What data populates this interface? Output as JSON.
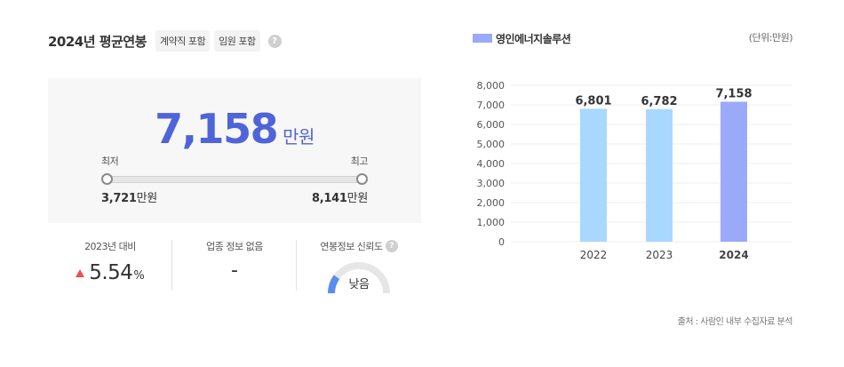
{
  "header": {
    "title": "2024년 평균연봉",
    "tags": [
      "계약직 포함",
      "임원 포함"
    ],
    "help": "?"
  },
  "salary": {
    "amount": "7,158",
    "unit": "만원",
    "min_label": "최저",
    "max_label": "최고",
    "min_value": "3,721",
    "max_value": "8,141",
    "value_unit": "만원"
  },
  "stats": {
    "yoy_label": "2023년 대비",
    "yoy_value": "5.54",
    "yoy_unit": "%",
    "industry_label": "업종 정보 없음",
    "industry_value": "-",
    "reliability_label": "연봉정보 신뢰도",
    "reliability_help": "?",
    "reliability_value": "낮음",
    "reliability_level": 0.2
  },
  "chart_data": {
    "type": "bar",
    "series": [
      {
        "name": "영인에너지솔루션",
        "values": [
          6801,
          6782,
          7158
        ]
      }
    ],
    "categories": [
      "2022",
      "2023",
      "2024"
    ],
    "value_labels": [
      "6,801",
      "6,782",
      "7,158"
    ],
    "y_ticks": [
      "0",
      "1,000",
      "2,000",
      "3,000",
      "4,000",
      "5,000",
      "6,000",
      "7,000",
      "8,000"
    ],
    "ylim": [
      0,
      8000
    ],
    "grid": true,
    "unit_note": "(단위:만원)",
    "highlight_index": 2,
    "colors": {
      "bar": "#a9d8ff",
      "highlight": "#9aa9fa"
    }
  },
  "legend": {
    "label": "영인에너지솔루션",
    "color": "#9aa9fa"
  },
  "source": "출처 : 사람인 내부 수집자료 분석",
  "colors": {
    "accent": "#4f64d9",
    "up": "#ee4f4f",
    "gauge_fill": "#5b8def",
    "gauge_track": "#e6e6e6"
  }
}
